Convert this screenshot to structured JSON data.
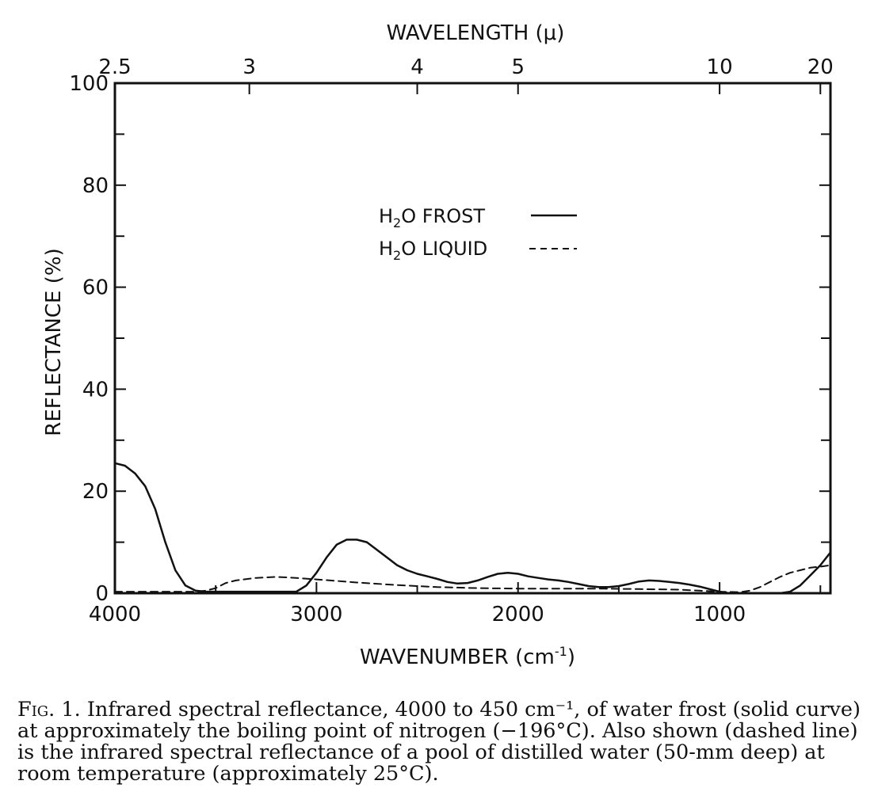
{
  "chart_data": {
    "type": "line",
    "top_axis_label": "WAVELENGTH (μ)",
    "top_ticks": [
      {
        "label": "2.5",
        "wavenumber": 4000
      },
      {
        "label": "3",
        "wavenumber": 3333
      },
      {
        "label": "4",
        "wavenumber": 2500
      },
      {
        "label": "5",
        "wavenumber": 2000
      },
      {
        "label": "10",
        "wavenumber": 1000
      },
      {
        "label": "20",
        "wavenumber": 500
      }
    ],
    "xlabel": "WAVENUMBER (cm",
    "xlabel_superscript": "-1",
    "xlabel_close": ")",
    "ylabel": "REFLECTANCE (%)",
    "xlim": [
      4000,
      450
    ],
    "ylim": [
      0,
      100
    ],
    "x_ticks": [
      {
        "label": "4000",
        "value": 4000
      },
      {
        "label": "3000",
        "value": 3000
      },
      {
        "label": "2000",
        "value": 2000
      },
      {
        "label": "1000",
        "value": 1000
      }
    ],
    "y_ticks": [
      "0",
      "20",
      "40",
      "60",
      "80",
      "100"
    ],
    "legend": {
      "placement": "upper-center",
      "frost": {
        "pre": "H",
        "sub": "2",
        "post": "O FROST"
      },
      "liquid": {
        "pre": "H",
        "sub": "2",
        "post": "O LIQUID"
      }
    },
    "series": [
      {
        "key": "frost",
        "style": "solid",
        "x": [
          4000,
          3950,
          3900,
          3850,
          3800,
          3750,
          3700,
          3650,
          3600,
          3550,
          3500,
          3400,
          3300,
          3200,
          3100,
          3050,
          3000,
          2950,
          2900,
          2850,
          2800,
          2750,
          2700,
          2650,
          2600,
          2550,
          2500,
          2450,
          2400,
          2350,
          2300,
          2250,
          2200,
          2150,
          2100,
          2050,
          2000,
          1950,
          1900,
          1850,
          1800,
          1750,
          1700,
          1650,
          1600,
          1550,
          1500,
          1450,
          1400,
          1350,
          1300,
          1250,
          1200,
          1150,
          1100,
          1050,
          1000,
          950,
          900,
          850,
          800,
          750,
          700,
          650,
          600,
          550,
          500,
          450
        ],
        "y": [
          25.5,
          25,
          23.5,
          21,
          16.5,
          10,
          4.5,
          1.5,
          0.5,
          0.3,
          0.3,
          0.3,
          0.3,
          0.3,
          0.3,
          1.5,
          4,
          7,
          9.5,
          10.5,
          10.5,
          10,
          8.5,
          7,
          5.5,
          4.5,
          3.8,
          3.3,
          2.8,
          2.2,
          1.9,
          2,
          2.5,
          3.2,
          3.8,
          4,
          3.8,
          3.3,
          3,
          2.7,
          2.5,
          2.2,
          1.8,
          1.4,
          1.2,
          1.2,
          1.4,
          1.8,
          2.3,
          2.5,
          2.4,
          2.2,
          2,
          1.7,
          1.3,
          0.8,
          0.3,
          0,
          0,
          0,
          0,
          0,
          0,
          0.3,
          1.5,
          3.5,
          5.5,
          8
        ]
      },
      {
        "key": "liquid",
        "style": "dashed",
        "x": [
          4000,
          3900,
          3800,
          3700,
          3600,
          3550,
          3500,
          3450,
          3400,
          3300,
          3200,
          3100,
          3000,
          2900,
          2800,
          2600,
          2400,
          2200,
          2000,
          1800,
          1600,
          1400,
          1200,
          1100,
          1000,
          900,
          850,
          800,
          750,
          700,
          650,
          600,
          550,
          500,
          450
        ],
        "y": [
          0.3,
          0.3,
          0.3,
          0.3,
          0.3,
          0.5,
          1,
          2,
          2.5,
          3,
          3.2,
          3,
          2.7,
          2.4,
          2.1,
          1.6,
          1.2,
          1,
          0.9,
          0.9,
          0.9,
          0.8,
          0.7,
          0.5,
          0.3,
          0.2,
          0.5,
          1.2,
          2.2,
          3.2,
          4,
          4.5,
          5,
          5.2,
          5.5
        ]
      }
    ]
  },
  "caption": {
    "fig_label": "Fig. 1.",
    "text": "Infrared spectral reflectance, 4000 to 450 cm⁻¹, of water frost (solid curve) at approximately the boiling point of nitrogen (−196°C). Also shown (dashed line) is the infrared spectral reflectance of a pool of distilled water (50-mm deep) at room temperature (approximately 25°C)."
  }
}
